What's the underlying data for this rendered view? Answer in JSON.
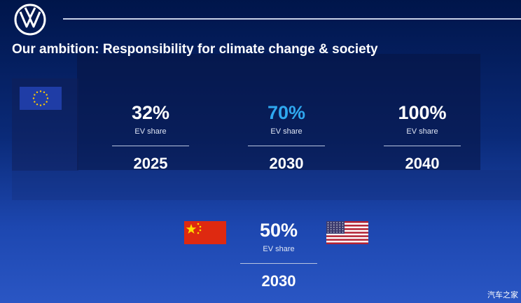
{
  "header": {
    "logo": "vw-logo",
    "title": "Our ambition: Responsibility for climate change & society"
  },
  "europe": {
    "flag": "eu-flag",
    "stats": [
      {
        "percent": "32%",
        "label": "EV share",
        "year": "2025",
        "highlight": false
      },
      {
        "percent": "70%",
        "label": "EV share",
        "year": "2030",
        "highlight": true
      },
      {
        "percent": "100%",
        "label": "EV share",
        "year": "2040",
        "highlight": false
      }
    ]
  },
  "china_us": {
    "flags": [
      "china-flag",
      "us-flag"
    ],
    "stat": {
      "percent": "50%",
      "label": "EV share",
      "year": "2030"
    }
  },
  "watermark": "汽车之家",
  "colors": {
    "highlight": "#2fa8f0",
    "background_top": "#00154a",
    "background_bottom": "#2a56c4"
  }
}
